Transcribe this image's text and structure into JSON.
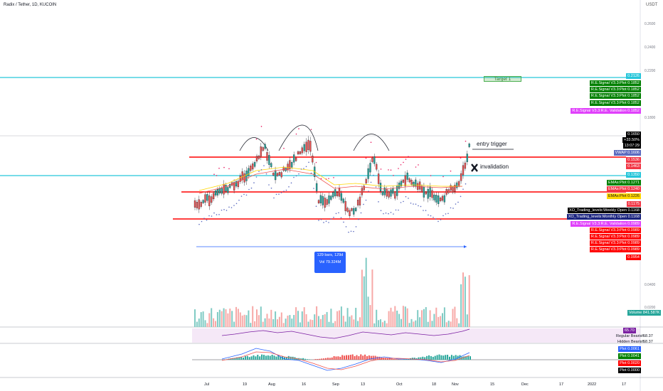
{
  "header": {
    "title": "Radix / Tether, 1D, KUCOIN",
    "currency": "USDT"
  },
  "price_axis": [
    "0.2600",
    "0.2400",
    "0.2200",
    "0.1800",
    "0.0400",
    "0.0200"
  ],
  "right_labels": [
    {
      "text": "0.2126",
      "color": "#26c6da"
    },
    {
      "text": "R.E.Signal V3.3:Plot   0.1852",
      "color": "#008000"
    },
    {
      "text": "R.E.Signal V3.3:Plot   0.1852",
      "color": "#008000"
    },
    {
      "text": "R.E.Signal V3.3:Plot   0.1852",
      "color": "#008000"
    },
    {
      "text": "R.E.Signal V3.3:Plot   0.1852",
      "color": "#008000"
    },
    {
      "text": "R.E.Signal V3.3:R.E. Validation   0.1852",
      "color": "#e040fb"
    },
    {
      "text": "0.1650",
      "color": "#000000"
    },
    {
      "text": "+33.50%",
      "color": "#000000"
    },
    {
      "text": "13:07:29",
      "color": "#000000"
    },
    {
      "text": "VWAP   0.1606",
      "color": "#5c6bc0"
    },
    {
      "text": "0.1536",
      "color": "#f23645"
    },
    {
      "text": "0.1463",
      "color": "#f23645"
    },
    {
      "text": "0.1350",
      "color": "#26c6da"
    },
    {
      "text": "EMAs:Plot   0.1271",
      "color": "#008000"
    },
    {
      "text": "EMAs:Plot   0.1240",
      "color": "#f23645"
    },
    {
      "text": "EMAs:Plot   0.1226",
      "color": "#ffd600"
    },
    {
      "text": "0.1175",
      "color": "#f23645"
    },
    {
      "text": "XO_Trading_levels:Weekly Open   0.1168",
      "color": "#000000"
    },
    {
      "text": "XO_Trading_levels:Monthly Open   0.1168",
      "color": "#1a237e"
    },
    {
      "text": "R.E.Signal V3.3:R.E. Validation   0.0989",
      "color": "#e040fb"
    },
    {
      "text": "R.E.Signal V3.3:Plot   0.0989",
      "color": "#ff0000"
    },
    {
      "text": "R.E.Signal V3.3:Plot   0.0989",
      "color": "#ff0000"
    },
    {
      "text": "R.E.Signal V3.3:Plot   0.0989",
      "color": "#ff0000"
    },
    {
      "text": "R.E.Signal V3.3:Plot   0.0989",
      "color": "#ff0000"
    },
    {
      "text": "0.0954",
      "color": "#ff0000"
    }
  ],
  "volume_label": "Volume   841.587K",
  "rsi": {
    "value": "65.70",
    "bearish_label": "Regular Bearish",
    "bearish_value": "58.37",
    "hidden_label": "Hidden Bearish",
    "hidden_value": "58.37"
  },
  "macd_labels": [
    {
      "text": "Plot   0.0061",
      "color": "#2962ff"
    },
    {
      "text": "Plot   0.0041",
      "color": "#008000"
    },
    {
      "text": "Plot   0.0020",
      "color": "#ff0000"
    },
    {
      "text": "Plot   0.0000",
      "color": "#000000"
    }
  ],
  "annotations": {
    "target": "Target 1",
    "entry": "entry trigger",
    "invalidation": "invalidation",
    "measure_line1": "129 bars, 129d",
    "measure_line2": "Vol 79.324M"
  },
  "x_axis": [
    {
      "text": "Jul",
      "x": 287
    },
    {
      "text": "19",
      "x": 341
    },
    {
      "text": "Aug",
      "x": 377
    },
    {
      "text": "16",
      "x": 424
    },
    {
      "text": "Sep",
      "x": 467
    },
    {
      "text": "13",
      "x": 507
    },
    {
      "text": "Oct",
      "x": 557
    },
    {
      "text": "18",
      "x": 607
    },
    {
      "text": "Nov",
      "x": 635
    },
    {
      "text": "15",
      "x": 689
    },
    {
      "text": "Dec",
      "x": 733
    },
    {
      "text": "17",
      "x": 786
    },
    {
      "text": "2022",
      "x": 826
    },
    {
      "text": "17",
      "x": 874
    }
  ],
  "colors": {
    "up": "#26a69a",
    "down": "#ef5350",
    "cyan": "#26c6da",
    "red": "#ff0000",
    "blue": "#2962ff"
  }
}
